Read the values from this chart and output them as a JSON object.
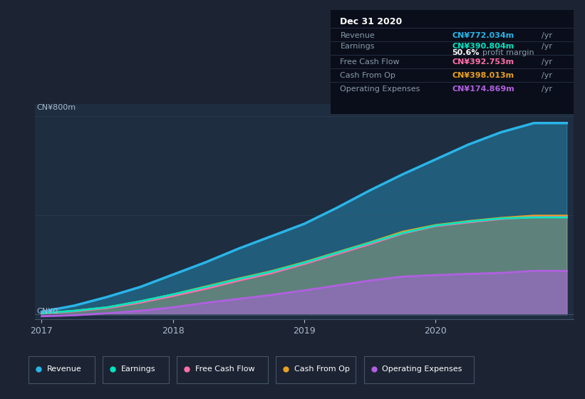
{
  "background_color": "#1c2333",
  "plot_bg_color": "#1e2d40",
  "ylabel_top": "CN¥800m",
  "ylabel_bottom": "CN¥0",
  "years": [
    2017.0,
    2017.25,
    2017.5,
    2017.75,
    2018.0,
    2018.25,
    2018.5,
    2018.75,
    2019.0,
    2019.25,
    2019.5,
    2019.75,
    2020.0,
    2020.25,
    2020.5,
    2020.75,
    2021.0
  ],
  "revenue": [
    10,
    35,
    70,
    110,
    160,
    210,
    265,
    315,
    365,
    430,
    500,
    565,
    625,
    685,
    735,
    772,
    772
  ],
  "earnings": [
    4,
    14,
    28,
    52,
    80,
    110,
    142,
    172,
    208,
    248,
    288,
    328,
    358,
    374,
    387,
    391,
    391
  ],
  "free_cf": [
    3,
    12,
    25,
    47,
    74,
    103,
    136,
    166,
    203,
    243,
    283,
    326,
    356,
    371,
    385,
    393,
    393
  ],
  "cash_from_op": [
    4,
    14,
    28,
    52,
    80,
    112,
    144,
    174,
    210,
    250,
    290,
    333,
    360,
    376,
    389,
    398,
    398
  ],
  "op_expenses": [
    -8,
    -4,
    4,
    14,
    28,
    46,
    62,
    78,
    96,
    116,
    136,
    152,
    158,
    163,
    167,
    175,
    175
  ],
  "revenue_color": "#29b5e8",
  "earnings_color": "#00e5c0",
  "free_cf_color": "#ff6fa8",
  "cash_from_op_color": "#e8a020",
  "op_expenses_color": "#b060e0",
  "info_box": {
    "date": "Dec 31 2020",
    "revenue_val": "CN¥772.034m",
    "earnings_val": "CN¥390.804m",
    "profit_margin": "50.6%",
    "free_cf_val": "CN¥392.753m",
    "cash_from_op_val": "CN¥398.013m",
    "op_expenses_val": "CN¥174.869m"
  },
  "legend_items": [
    "Revenue",
    "Earnings",
    "Free Cash Flow",
    "Cash From Op",
    "Operating Expenses"
  ],
  "legend_colors": [
    "#29b5e8",
    "#00e5c0",
    "#ff6fa8",
    "#e8a020",
    "#b060e0"
  ]
}
